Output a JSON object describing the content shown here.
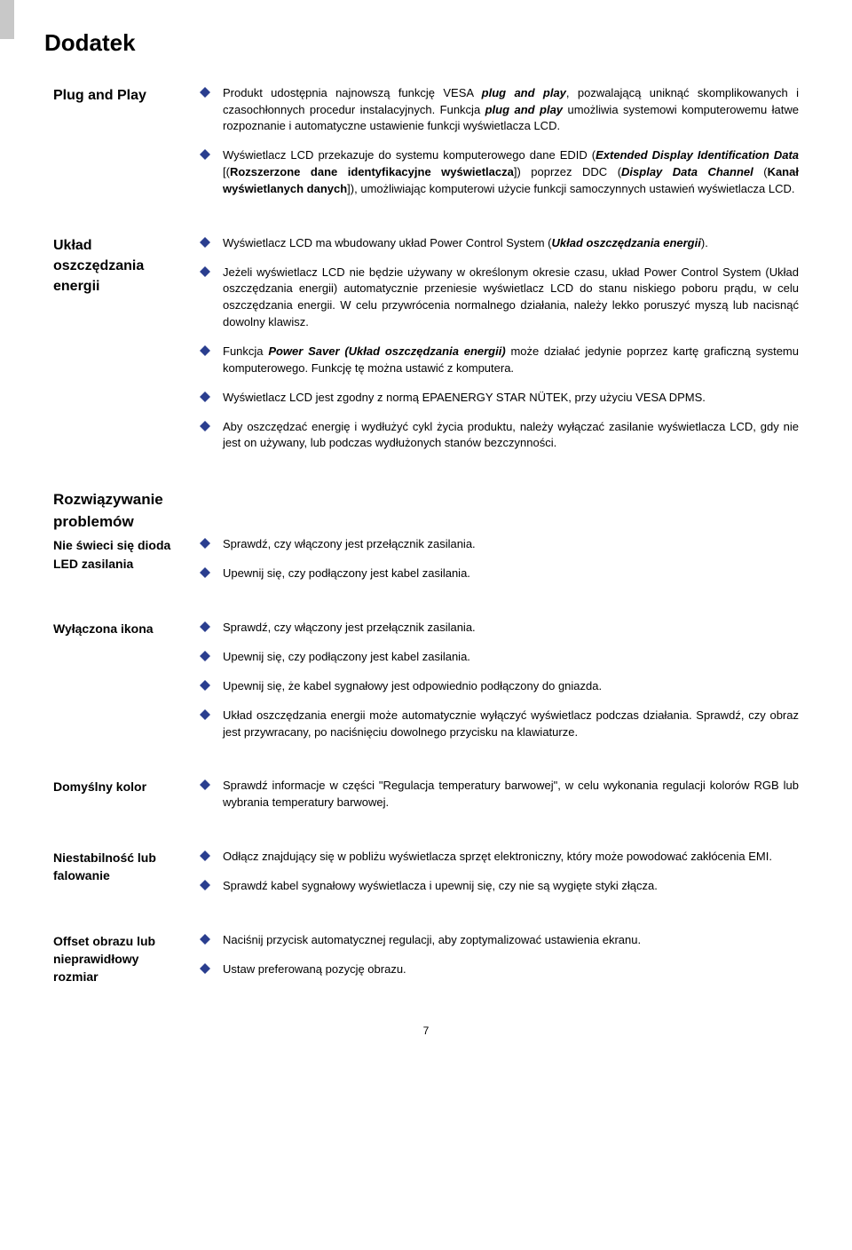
{
  "colors": {
    "diamond_fill": "#2a3e8f",
    "text": "#000000",
    "background": "#ffffff",
    "left_band": "#c8c8c8"
  },
  "typography": {
    "body_font": "Arial",
    "body_size_pt": 10,
    "title_size_pt": 20,
    "section_label_size_pt": 12
  },
  "page_title": "Dodatek",
  "page_number": "7",
  "sections": [
    {
      "label_lines": [
        "Plug and Play"
      ],
      "items": [
        "Produkt udostępnia najnowszą funkcję VESA <strong><em>plug and play</em></strong>, pozwalającą uniknąć skomplikowanych i czasochłonnych procedur instalacyjnych. Funkcja <strong><em>plug and play</em></strong> umożliwia systemowi komputerowemu łatwe rozpoznanie i automatyczne ustawienie funkcji wyświetlacza LCD.",
        "Wyświetlacz LCD przekazuje do systemu komputerowego dane EDID (<strong><em>Extended Display Identification Data</em></strong> [(<strong>Rozszerzone dane identyfikacyjne wyświetlacza</strong>]) poprzez DDC (<strong><em>Display Data Channel</em></strong> (<strong>Kanał wyświetlanych danych</strong>]), umożliwiając komputerowi użycie funkcji samoczynnych ustawień wyświetlacza LCD."
      ]
    },
    {
      "label_lines": [
        "Układ",
        "oszczędzania",
        "energii"
      ],
      "items": [
        "Wyświetlacz LCD ma wbudowany układ Power Control System (<strong><em>Układ oszczędzania energii</em></strong>).",
        "Jeżeli wyświetlacz LCD nie będzie używany w określonym okresie czasu, układ Power Control System (Układ oszczędzania energii) automatycznie przeniesie wyświetlacz LCD do stanu niskiego poboru prądu, w celu oszczędzania energii. W celu przywrócenia normalnego działania, należy lekko poruszyć myszą lub nacisnąć dowolny klawisz.",
        "Funkcja <strong><em>Power Saver (Układ oszczędzania energii)</em></strong> może działać jedynie poprzez kartę graficzną systemu komputerowego. Funkcję tę można ustawić z komputera.",
        "Wyświetlacz LCD jest zgodny z normą EPAENERGY STAR NÜTEK, przy użyciu VESA DPMS.",
        "Aby oszczędzać energię i wydłużyć cykl życia produktu, należy wyłączać zasilanie wyświetlacza LCD, gdy nie jest on używany, lub podczas wydłużonych stanów bezczynności."
      ]
    }
  ],
  "troubleshoot_heading": "Rozwiązywanie problemów",
  "troubleshoot": [
    {
      "label_lines": [
        "Nie świeci się dioda",
        "LED zasilania"
      ],
      "label_class": "sub",
      "items": [
        "Sprawdź, czy włączony jest przełącznik zasilania.",
        "Upewnij się, czy podłączony jest kabel zasilania."
      ]
    },
    {
      "label_lines": [
        "Wyłączona ikona"
      ],
      "label_class": "sub",
      "items": [
        "Sprawdź, czy włączony jest przełącznik zasilania.",
        "Upewnij się, czy podłączony jest kabel zasilania.",
        "Upewnij się, że kabel sygnałowy jest odpowiednio podłączony do gniazda.",
        "Układ oszczędzania energii może automatycznie wyłączyć wyświetlacz podczas działania. Sprawdź, czy obraz jest przywracany, po naciśnięciu dowolnego przycisku na klawiaturze."
      ]
    },
    {
      "label_lines": [
        "Domyślny kolor"
      ],
      "label_class": "sub",
      "items": [
        "Sprawdź informacje w części \"Regulacja temperatury barwowej\", w celu wykonania regulacji kolorów RGB lub wybrania temperatury barwowej."
      ]
    },
    {
      "label_lines": [
        "Niestabilność lub",
        "falowanie"
      ],
      "label_class": "sub",
      "items": [
        "Odłącz znajdujący się w pobliżu wyświetlacza sprzęt elektroniczny, który może powodować zakłócenia EMI.",
        "Sprawdź kabel sygnałowy wyświetlacza i upewnij się, czy nie są wygięte styki złącza."
      ]
    },
    {
      "label_lines": [
        "Offset obrazu lub",
        "nieprawidłowy",
        "rozmiar"
      ],
      "label_class": "sub",
      "items": [
        "Naciśnij przycisk automatycznej regulacji, aby zoptymalizować ustawienia ekranu.",
        "Ustaw preferowaną pozycję obrazu."
      ]
    }
  ]
}
